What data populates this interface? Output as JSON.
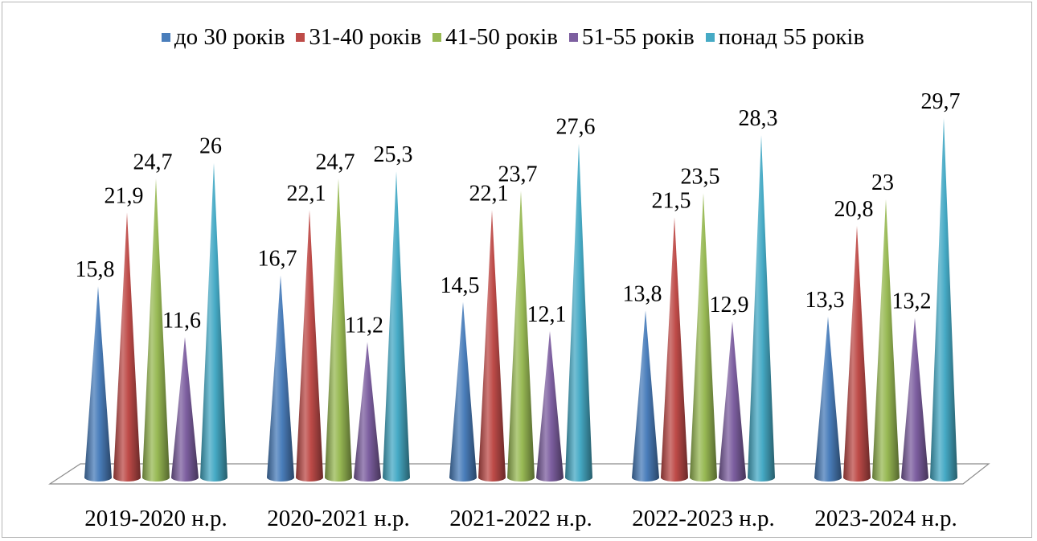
{
  "chart_data": {
    "type": "bar",
    "style": "3d-cone",
    "title": "",
    "xlabel": "",
    "ylabel": "",
    "ylim": [
      0,
      30
    ],
    "grid": false,
    "legend_position": "top",
    "categories": [
      "2019-2020 н.р.",
      "2020-2021 н.р.",
      "2021-2022 н.р.",
      "2022-2023 н.р.",
      "2023-2024 н.р."
    ],
    "series": [
      {
        "name": "до 30 років",
        "color": "#4a7ebb",
        "values": [
          15.8,
          16.7,
          14.5,
          13.8,
          13.3
        ],
        "labels": [
          "15,8",
          "16,7",
          "14,5",
          "13,8",
          "13,3"
        ]
      },
      {
        "name": "31-40 років",
        "color": "#be4b48",
        "values": [
          21.9,
          22.1,
          22.1,
          21.5,
          20.8
        ],
        "labels": [
          "21,9",
          "22,1",
          "22,1",
          "21,5",
          "20,8"
        ]
      },
      {
        "name": "41-50 років",
        "color": "#98b954",
        "values": [
          24.7,
          24.7,
          23.7,
          23.5,
          23
        ],
        "labels": [
          "24,7",
          "24,7",
          "23,7",
          "23,5",
          "23"
        ]
      },
      {
        "name": "51-55 років",
        "color": "#7d5fa0",
        "values": [
          11.6,
          11.2,
          12.1,
          12.9,
          13.2
        ],
        "labels": [
          "11,6",
          "11,2",
          "12,1",
          "12,9",
          "13,2"
        ]
      },
      {
        "name": "понад 55 років",
        "color": "#46aac5",
        "values": [
          26,
          25.3,
          27.6,
          28.3,
          29.7
        ],
        "labels": [
          "26",
          "25,3",
          "27,6",
          "28,3",
          "29,7"
        ]
      }
    ]
  }
}
